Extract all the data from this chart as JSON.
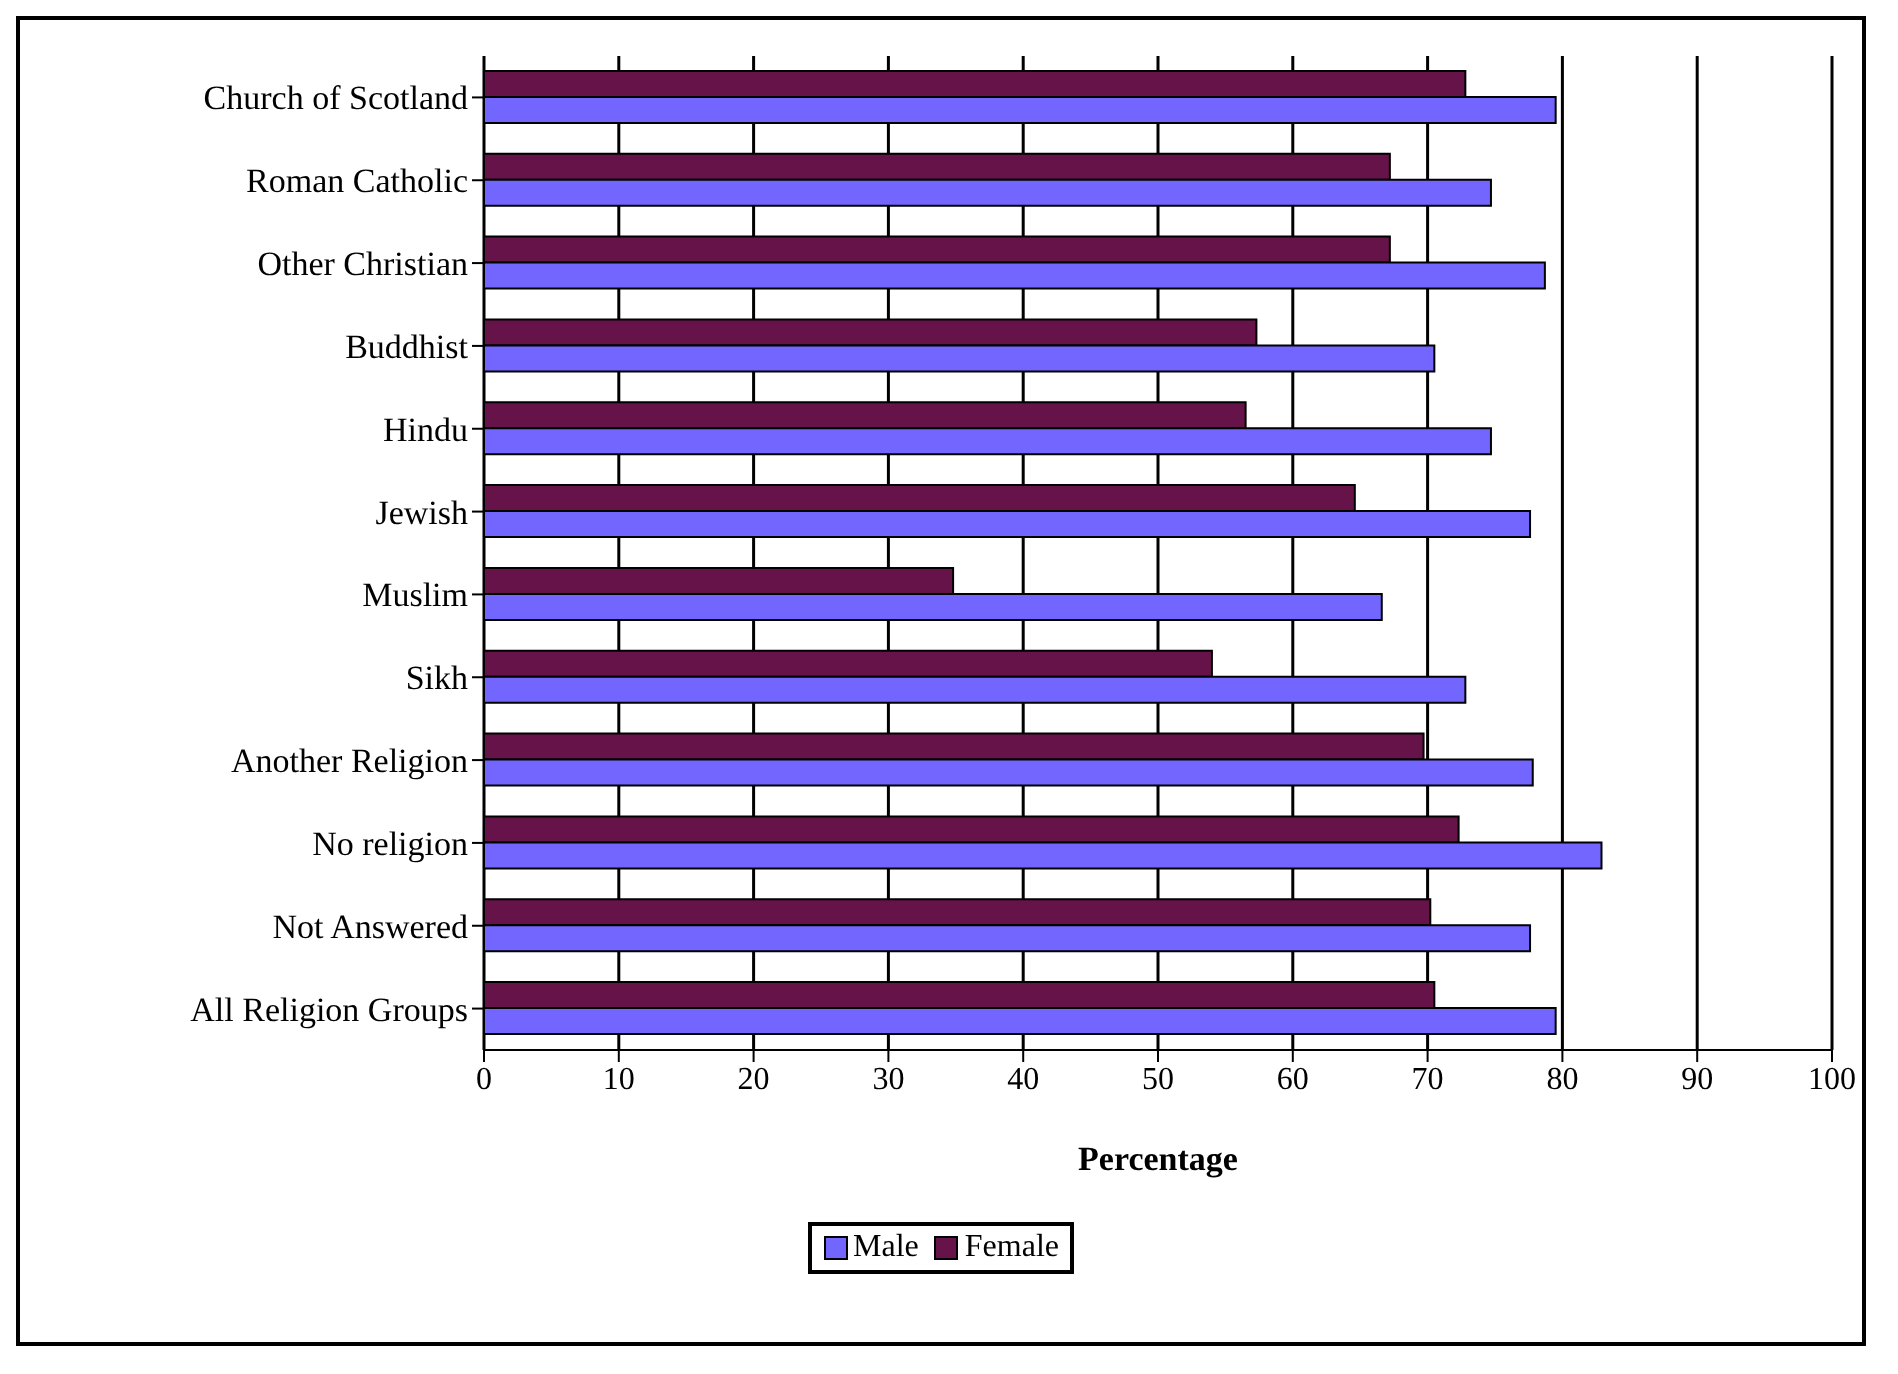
{
  "chart_data": {
    "type": "bar",
    "orientation": "horizontal",
    "xlabel": "Percentage",
    "categories": [
      "Church of Scotland",
      "Roman Catholic",
      "Other Christian",
      "Buddhist",
      "Hindu",
      "Jewish",
      "Muslim",
      "Sikh",
      "Another Religion",
      "No religion",
      "Not Answered",
      "All Religion Groups"
    ],
    "series": [
      {
        "name": "Male",
        "color": "#7366ff",
        "values": [
          79.5,
          74.7,
          78.7,
          70.5,
          74.7,
          77.6,
          66.6,
          72.8,
          77.8,
          82.9,
          77.6,
          79.5
        ]
      },
      {
        "name": "Female",
        "color": "#66134a",
        "values": [
          72.8,
          67.2,
          67.2,
          57.3,
          56.5,
          64.6,
          34.8,
          54.0,
          69.7,
          72.3,
          70.2,
          70.5
        ]
      }
    ],
    "xlim": [
      0,
      100
    ],
    "xticks": [
      0,
      10,
      20,
      30,
      40,
      50,
      60,
      70,
      80,
      90,
      100
    ],
    "grid": "x",
    "legend": "bottom"
  }
}
